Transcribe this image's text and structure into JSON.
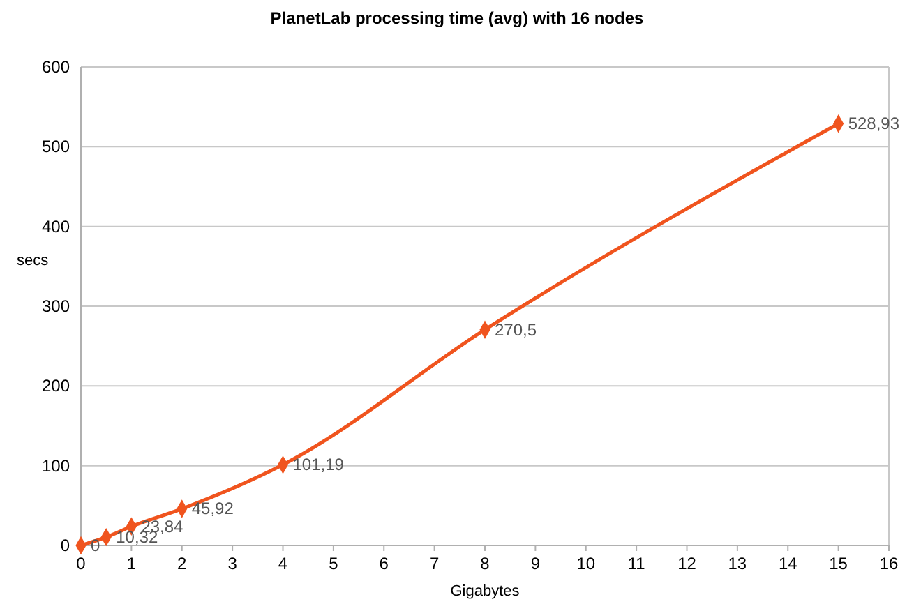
{
  "chart_data": {
    "type": "line",
    "title": "PlanetLab processing time (avg) with 16 nodes",
    "xlabel": "Gigabytes",
    "ylabel": "secs",
    "x": [
      0,
      0.5,
      1,
      2,
      4,
      8,
      15
    ],
    "series": [
      {
        "color": "#f0541e",
        "values": [
          0,
          10.32,
          23.84,
          45.92,
          101.19,
          270.5,
          528.93
        ],
        "value_labels": [
          "0",
          "10,32",
          "23,84",
          "45,92",
          "101,19",
          "270,5",
          "528,93"
        ]
      }
    ],
    "xlim": [
      0,
      16
    ],
    "xticks": [
      0,
      1,
      2,
      3,
      4,
      5,
      6,
      7,
      8,
      9,
      10,
      11,
      12,
      13,
      14,
      15,
      16
    ],
    "ylim": [
      0,
      600
    ],
    "yticks": [
      0,
      100,
      200,
      300,
      400,
      500,
      600
    ],
    "grid": "y",
    "marker": "diamond",
    "line_style": "solid"
  }
}
